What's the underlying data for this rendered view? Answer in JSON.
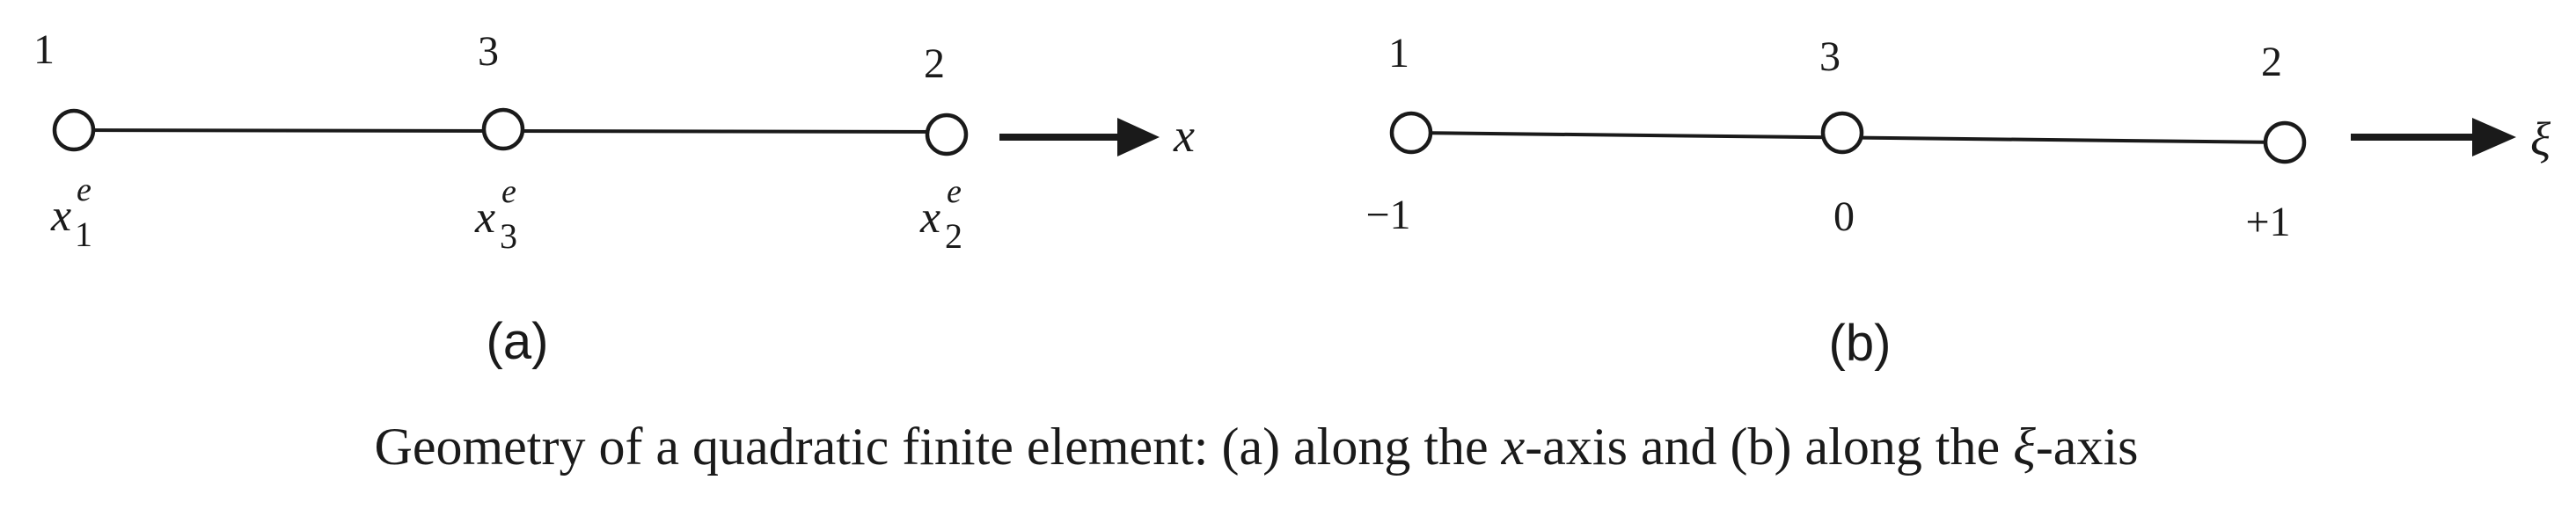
{
  "panel_a": {
    "label": "(a)",
    "axis_label": "x",
    "nodes": [
      {
        "number": "1",
        "coord_base": "x",
        "coord_sup": "e",
        "coord_sub": "1"
      },
      {
        "number": "3",
        "coord_base": "x",
        "coord_sup": "e",
        "coord_sub": "3"
      },
      {
        "number": "2",
        "coord_base": "x",
        "coord_sup": "e",
        "coord_sub": "2"
      }
    ]
  },
  "panel_b": {
    "label": "(b)",
    "axis_label": "ξ",
    "nodes": [
      {
        "number": "1",
        "value": "−1"
      },
      {
        "number": "3",
        "value": "0"
      },
      {
        "number": "2",
        "value": "+1"
      }
    ]
  },
  "caption": {
    "part1": "Geometry of a quadratic finite element: (a) along the ",
    "x_symbol": "x",
    "part2": "-axis and (b) along the ",
    "xi_symbol": "ξ",
    "part3": "-axis"
  }
}
